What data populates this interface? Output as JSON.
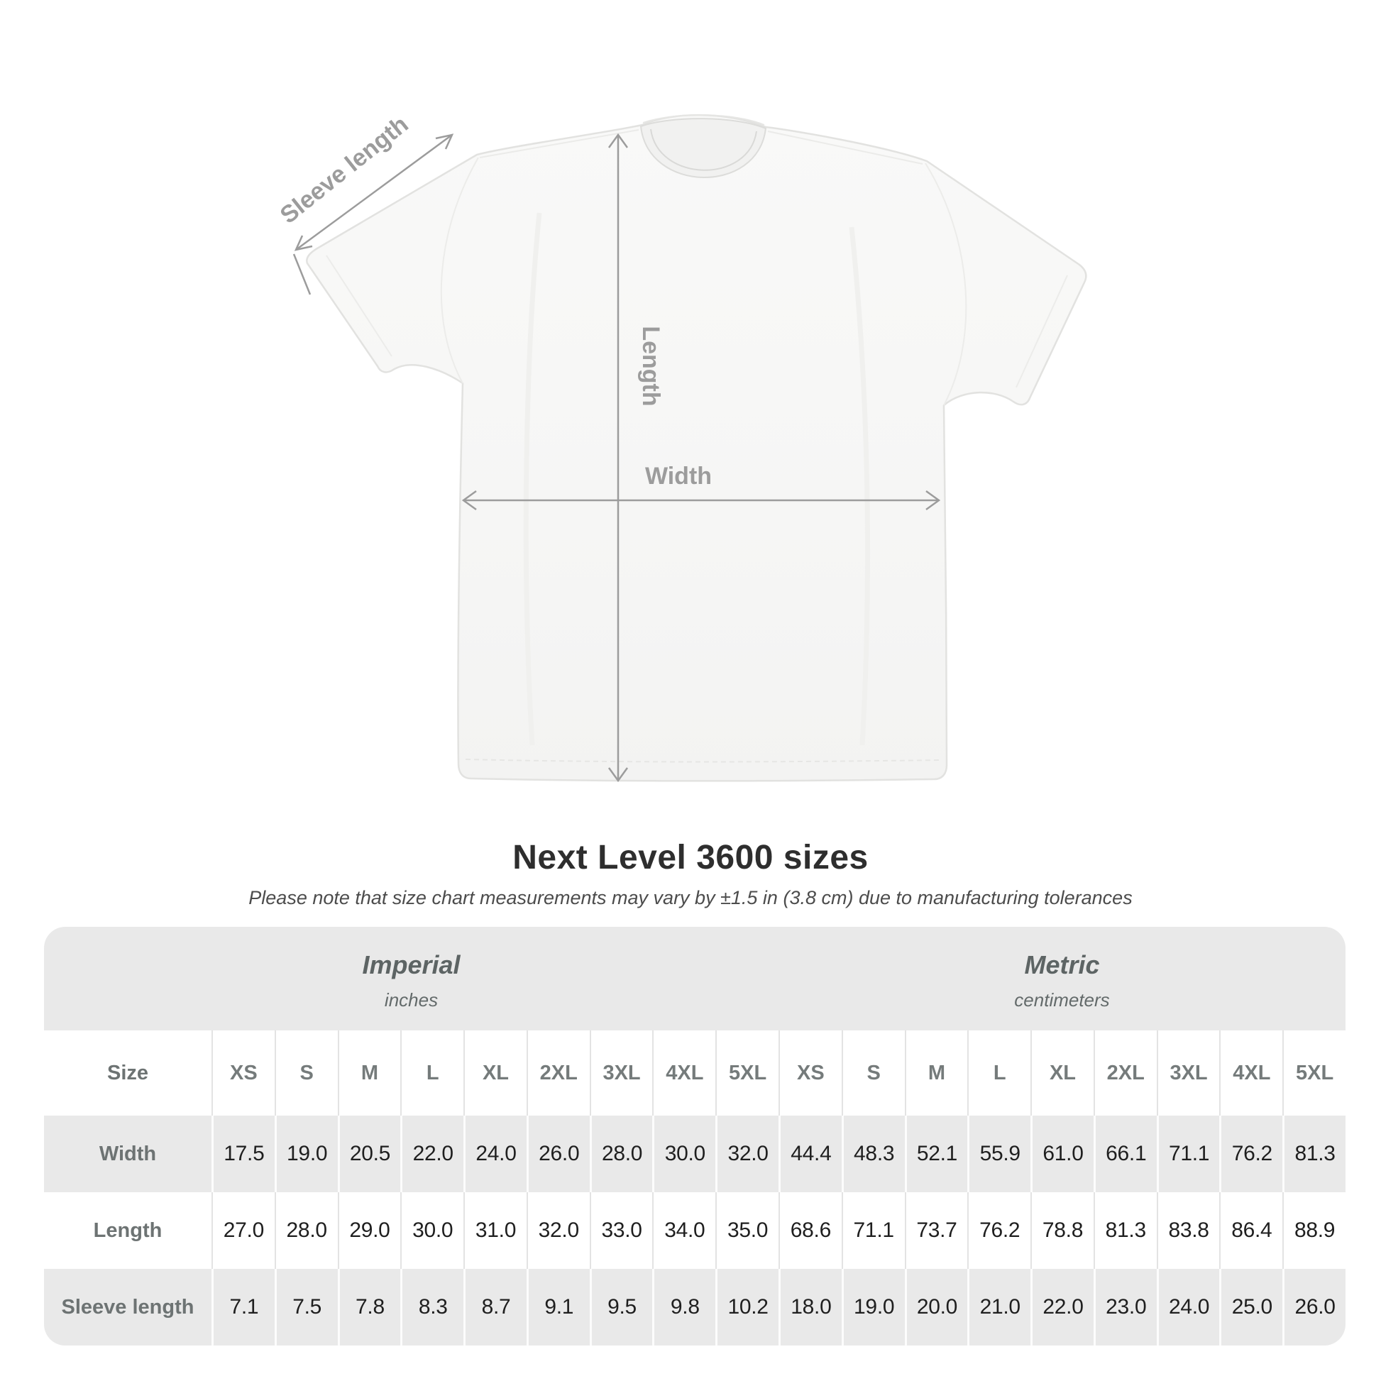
{
  "diagram": {
    "labels": {
      "sleeve_length": "Sleeve length",
      "length": "Length",
      "width": "Width"
    },
    "colors": {
      "annotation": "#9c9c9c",
      "shirt_fill": "#f7f7f6",
      "shirt_outline": "#e2e2e0"
    }
  },
  "header": {
    "title": "Next Level 3600 sizes",
    "subtitle": "Please note that size chart measurements may vary by ±1.5 in (3.8 cm) due to manufacturing tolerances"
  },
  "table": {
    "size_label": "Size",
    "unit_groups": [
      {
        "name": "Imperial",
        "unit": "inches"
      },
      {
        "name": "Metric",
        "unit": "centimeters"
      }
    ],
    "sizes_imperial": [
      "XS",
      "S",
      "M",
      "L",
      "XL",
      "2XL",
      "3XL",
      "4XL",
      "5XL"
    ],
    "sizes_metric": [
      "XS",
      "S",
      "M",
      "L",
      "XL",
      "2XL",
      "3XL",
      "4XL",
      "5XL"
    ],
    "rows": [
      {
        "label": "Width",
        "imperial": [
          "17.5",
          "19.0",
          "20.5",
          "22.0",
          "24.0",
          "26.0",
          "28.0",
          "30.0",
          "32.0"
        ],
        "metric": [
          "44.4",
          "48.3",
          "52.1",
          "55.9",
          "61.0",
          "66.1",
          "71.1",
          "76.2",
          "81.3"
        ]
      },
      {
        "label": "Length",
        "imperial": [
          "27.0",
          "28.0",
          "29.0",
          "30.0",
          "31.0",
          "32.0",
          "33.0",
          "34.0",
          "35.0"
        ],
        "metric": [
          "68.6",
          "71.1",
          "73.7",
          "76.2",
          "78.8",
          "81.3",
          "83.8",
          "86.4",
          "88.9"
        ]
      },
      {
        "label": "Sleeve length",
        "imperial": [
          "7.1",
          "7.5",
          "7.8",
          "8.3",
          "8.7",
          "9.1",
          "9.5",
          "9.8",
          "10.2"
        ],
        "metric": [
          "18.0",
          "19.0",
          "20.0",
          "21.0",
          "22.0",
          "23.0",
          "24.0",
          "25.0",
          "26.0"
        ]
      }
    ]
  },
  "chart_data": {
    "type": "table",
    "title": "Next Level 3600 sizes",
    "columns": [
      "XS",
      "S",
      "M",
      "L",
      "XL",
      "2XL",
      "3XL",
      "4XL",
      "5XL"
    ],
    "imperial_inches": {
      "Width": [
        17.5,
        19.0,
        20.5,
        22.0,
        24.0,
        26.0,
        28.0,
        30.0,
        32.0
      ],
      "Length": [
        27.0,
        28.0,
        29.0,
        30.0,
        31.0,
        32.0,
        33.0,
        34.0,
        35.0
      ],
      "Sleeve length": [
        7.1,
        7.5,
        7.8,
        8.3,
        8.7,
        9.1,
        9.5,
        9.8,
        10.2
      ]
    },
    "metric_centimeters": {
      "Width": [
        44.4,
        48.3,
        52.1,
        55.9,
        61.0,
        66.1,
        71.1,
        76.2,
        81.3
      ],
      "Length": [
        68.6,
        71.1,
        73.7,
        76.2,
        78.8,
        81.3,
        83.8,
        86.4,
        88.9
      ],
      "Sleeve length": [
        18.0,
        19.0,
        20.0,
        21.0,
        22.0,
        23.0,
        24.0,
        25.0,
        26.0
      ]
    }
  }
}
